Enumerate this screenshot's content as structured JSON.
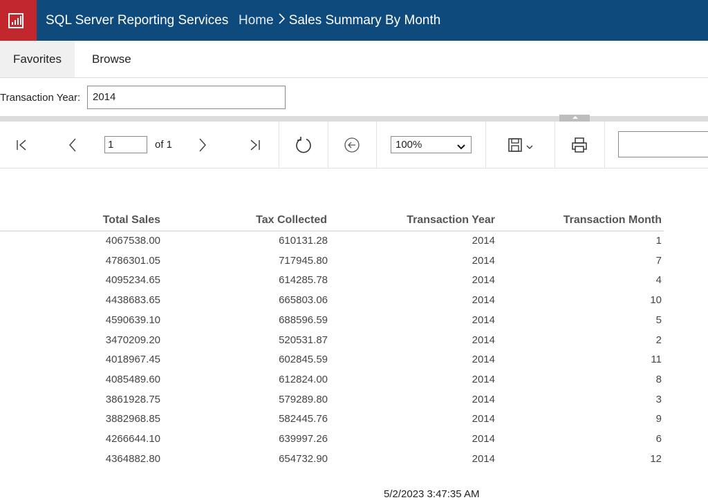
{
  "header": {
    "app_title": "SQL Server Reporting Services",
    "breadcrumb_home": "Home",
    "breadcrumb_current": "Sales Summary By Month",
    "logo_icon": "report-chart-icon",
    "colors": {
      "header_bg": "#0f4a7d",
      "logo_bg": "#c1272d"
    }
  },
  "tabs": [
    {
      "label": "Favorites",
      "selected": true
    },
    {
      "label": "Browse",
      "selected": false
    }
  ],
  "parameter": {
    "label": "Transaction Year:",
    "value": "2014"
  },
  "toolbar": {
    "page_value": "1",
    "page_of": "of 1",
    "zoom": "100%",
    "icons": [
      "first-page-icon",
      "previous-page-icon",
      "next-page-icon",
      "last-page-icon",
      "refresh-icon",
      "back-icon",
      "save-icon",
      "print-icon"
    ]
  },
  "table": {
    "headers": [
      "Total Sales",
      "Tax Collected",
      "Transaction Year",
      "Transaction Month"
    ],
    "rows": [
      [
        "4067538.00",
        "610131.28",
        "2014",
        "1"
      ],
      [
        "4786301.05",
        "717945.80",
        "2014",
        "7"
      ],
      [
        "4095234.65",
        "614285.78",
        "2014",
        "4"
      ],
      [
        "4438683.65",
        "665803.06",
        "2014",
        "10"
      ],
      [
        "4590639.10",
        "688596.59",
        "2014",
        "5"
      ],
      [
        "3470209.20",
        "520531.87",
        "2014",
        "2"
      ],
      [
        "4018967.45",
        "602845.59",
        "2014",
        "11"
      ],
      [
        "4085489.60",
        "612824.00",
        "2014",
        "8"
      ],
      [
        "3861928.75",
        "579289.80",
        "2014",
        "3"
      ],
      [
        "3882968.85",
        "582445.76",
        "2014",
        "9"
      ],
      [
        "4266644.10",
        "639997.26",
        "2014",
        "6"
      ],
      [
        "4364882.80",
        "654732.90",
        "2014",
        "12"
      ]
    ]
  },
  "footer": {
    "timestamp": "5/2/2023 3:47:35 AM"
  }
}
